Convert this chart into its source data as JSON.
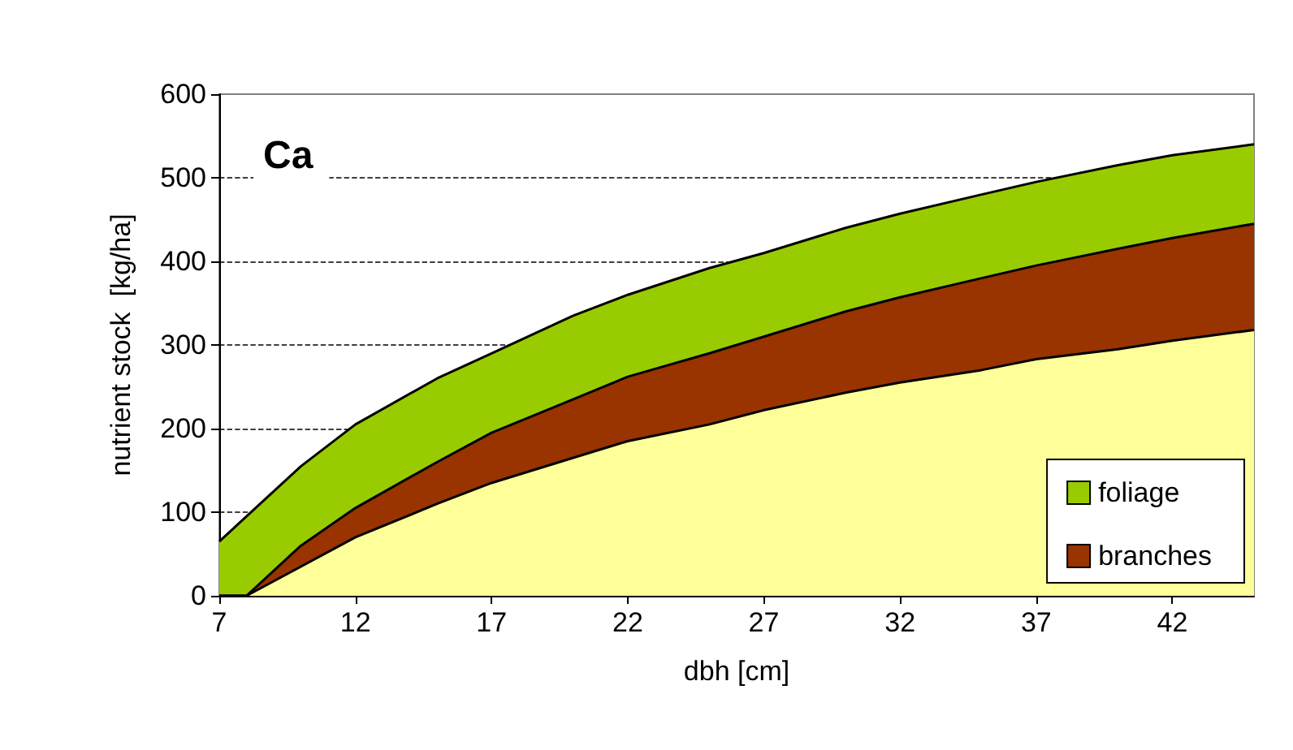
{
  "chart_data": {
    "type": "area",
    "title": "Ca",
    "xlabel": "dbh [cm]",
    "ylabel": "nutrient stock  [kg/ha]",
    "stacked": true,
    "x": [
      7,
      8,
      10,
      12,
      15,
      17,
      20,
      22,
      25,
      27,
      30,
      32,
      35,
      37,
      40,
      42,
      45
    ],
    "series": [
      {
        "color": "#ffff99",
        "values": [
          0,
          0,
          35,
          70,
          110,
          135,
          165,
          185,
          205,
          222,
          243,
          255,
          270,
          283,
          295,
          305,
          318
        ]
      },
      {
        "name": "branches",
        "color": "#993300",
        "values": [
          0,
          0,
          25,
          35,
          50,
          60,
          70,
          77,
          85,
          88,
          97,
          102,
          110,
          112,
          120,
          123,
          127
        ]
      },
      {
        "name": "foliage",
        "color": "#99cc00",
        "values": [
          65,
          95,
          95,
          100,
          100,
          95,
          100,
          98,
          102,
          100,
          100,
          100,
          100,
          100,
          100,
          99,
          95
        ]
      }
    ],
    "xlim": [
      7,
      45
    ],
    "xticks": [
      7,
      12,
      17,
      22,
      27,
      32,
      37,
      42
    ],
    "ylim": [
      0,
      600
    ],
    "yticks": [
      0,
      100,
      200,
      300,
      400,
      500,
      600
    ],
    "grid": "y",
    "legend": "bottom right",
    "marker": "none"
  }
}
